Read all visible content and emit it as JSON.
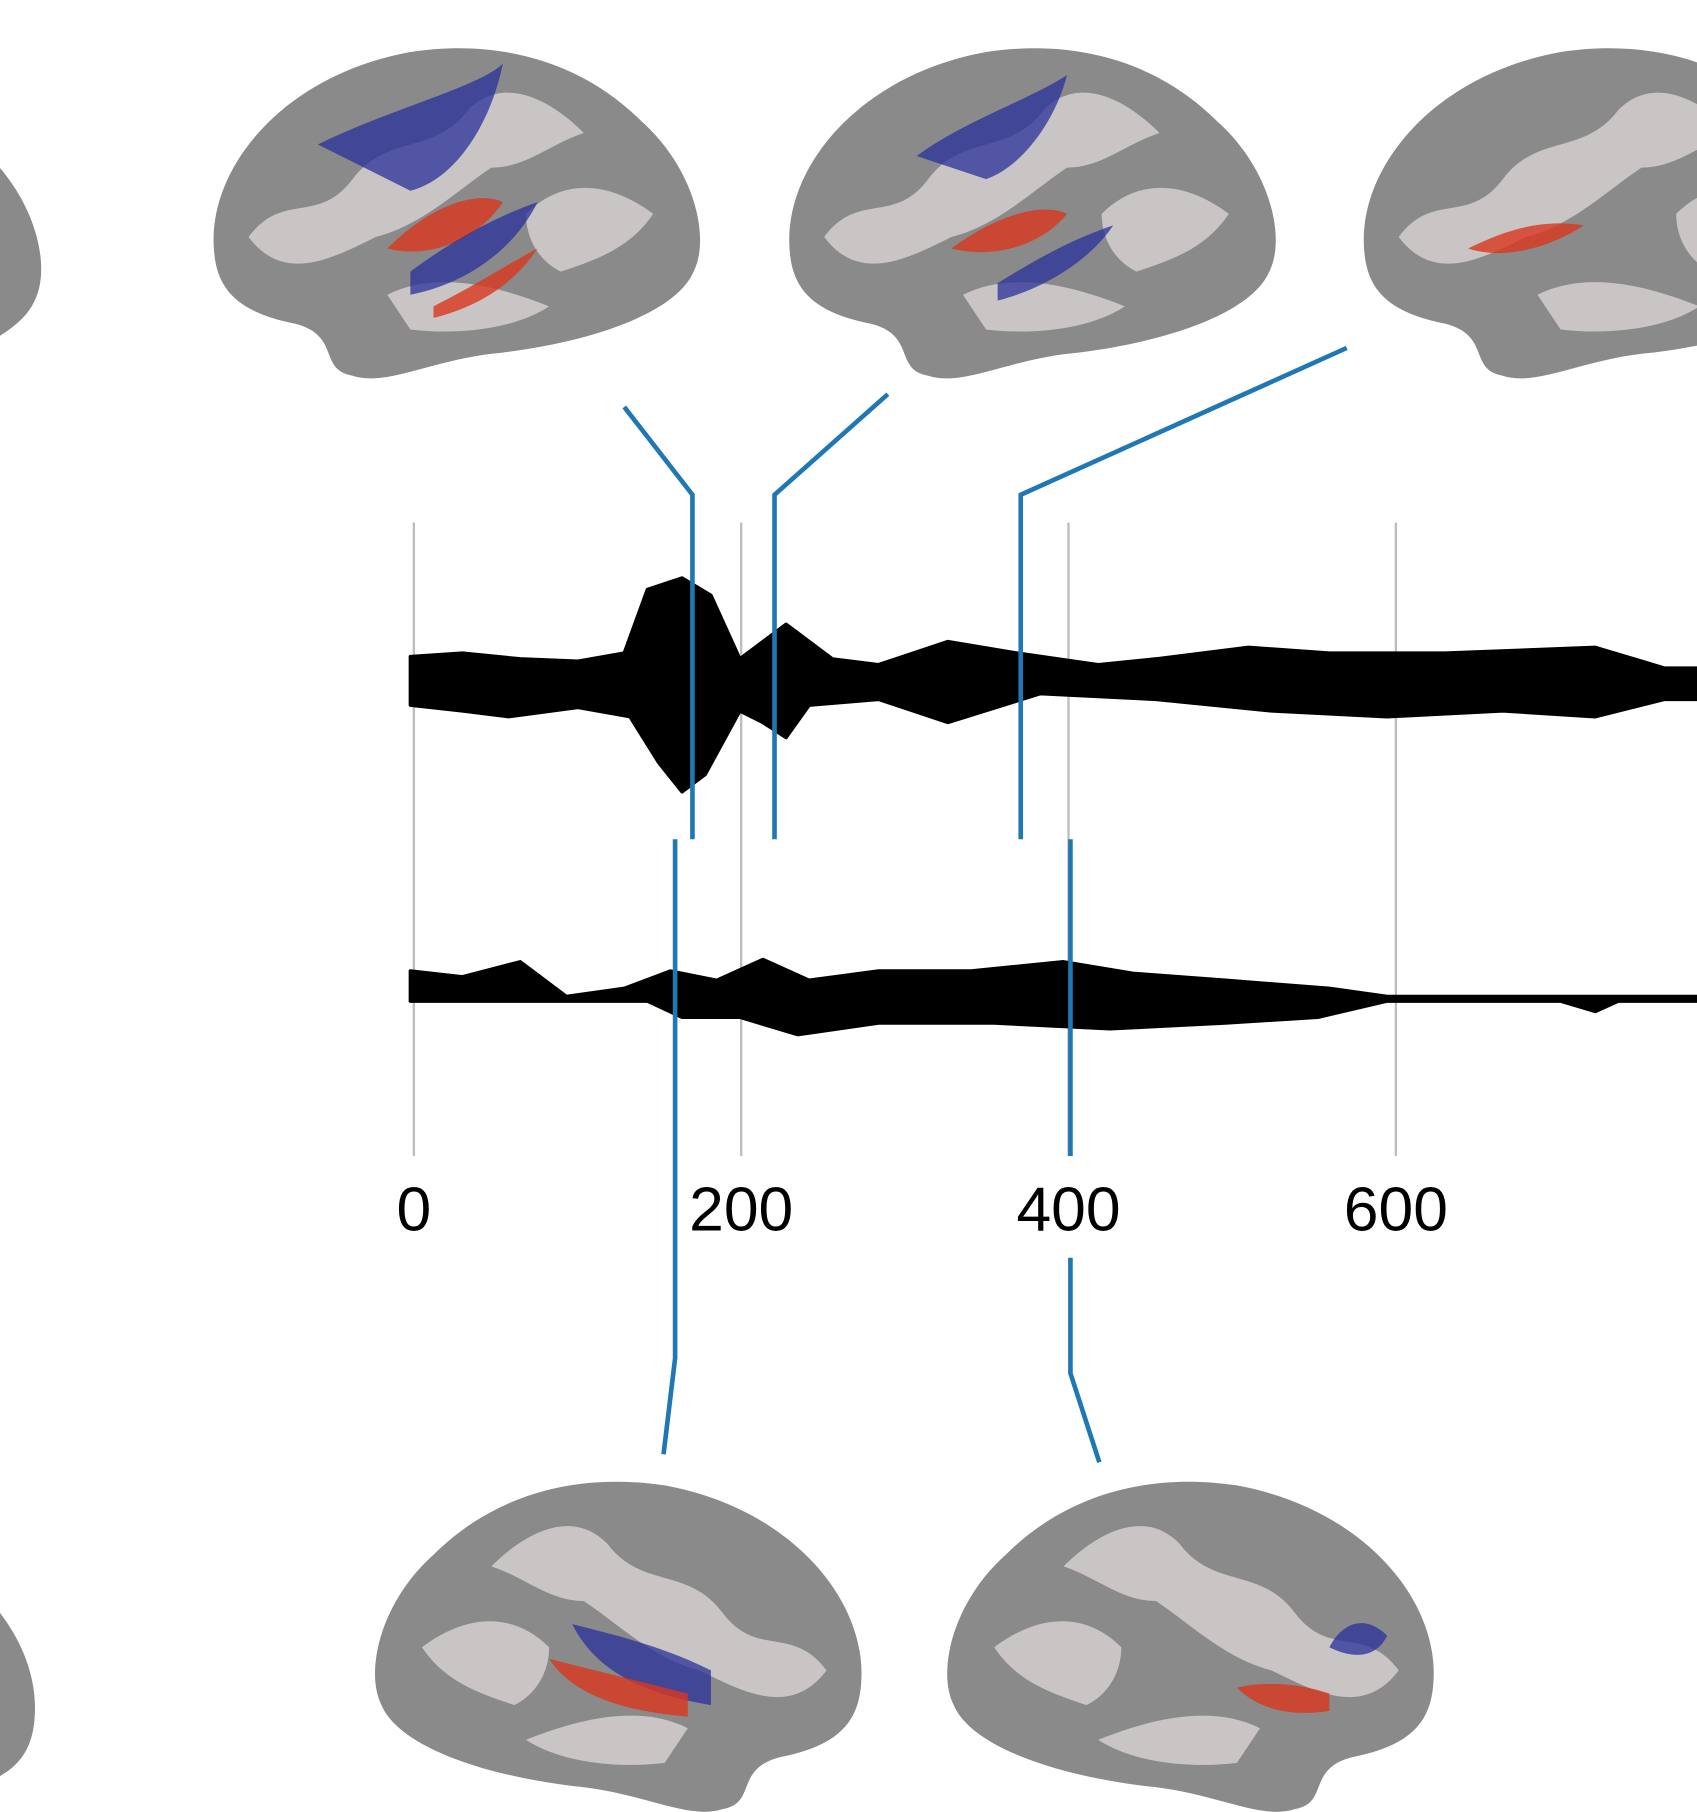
{
  "chart_data": {
    "type": "line",
    "xlim": [
      0,
      784
    ],
    "xticks": [
      0,
      200,
      400,
      600
    ],
    "grid": true
  }
}
